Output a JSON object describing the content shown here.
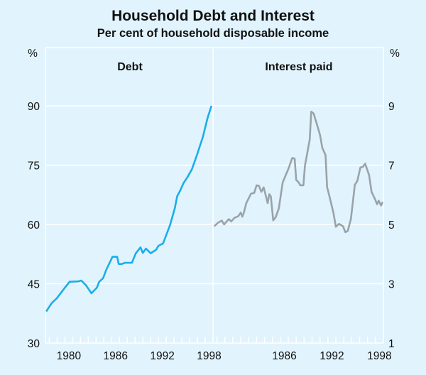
{
  "chart_data": [
    {
      "type": "line",
      "title": "Household Debt and Interest",
      "subtitle": "Per cent of household disposable income",
      "panel_title": "Debt",
      "ylabel": "%",
      "ylim": [
        30,
        105
      ],
      "yticks": [
        30,
        45,
        60,
        75,
        90
      ],
      "xlim": [
        1976.5,
        1998
      ],
      "xtick_labels": [
        "1980",
        "1986",
        "1992",
        "1998"
      ],
      "grid": true,
      "color": "#1aaeea",
      "x": [
        1976.6,
        1977.3,
        1977.95,
        1979.0,
        1979.6,
        1980.7,
        1981.1,
        1981.7,
        1982.4,
        1983.1,
        1983.4,
        1983.9,
        1984.3,
        1985.1,
        1985.7,
        1985.9,
        1986.3,
        1986.7,
        1987.2,
        1987.6,
        1988.1,
        1988.7,
        1989.0,
        1989.4,
        1990.0,
        1990.7,
        1991.0,
        1991.6,
        1992.5,
        1993.1,
        1993.4,
        1993.8,
        1994.2,
        1994.7,
        1995.3,
        1995.9,
        1996.7,
        1997.3,
        1997.8
      ],
      "y": [
        38.0,
        40.1,
        41.3,
        44.0,
        45.5,
        45.6,
        45.8,
        44.6,
        42.6,
        44.0,
        45.5,
        46.4,
        48.5,
        51.8,
        51.8,
        50.0,
        50.0,
        50.3,
        50.3,
        50.3,
        52.7,
        54.2,
        52.8,
        53.9,
        52.7,
        53.6,
        54.6,
        55.2,
        59.9,
        64.1,
        67.1,
        68.6,
        70.4,
        71.9,
        74.0,
        77.3,
        82.1,
        86.9,
        90.0
      ]
    },
    {
      "type": "line",
      "panel_title": "Interest paid",
      "ylabel": "%",
      "ylim": [
        1,
        10.5
      ],
      "yticks": [
        1,
        3,
        5,
        7,
        9
      ],
      "xlim": [
        1976.5,
        1998
      ],
      "xtick_labels": [
        "1986",
        "1992",
        "1998"
      ],
      "grid": true,
      "color": "#9aa3a8",
      "x": [
        1976.65,
        1977.1,
        1977.6,
        1977.9,
        1978.5,
        1978.8,
        1979.2,
        1979.7,
        1980.0,
        1980.2,
        1980.4,
        1980.7,
        1981.3,
        1981.7,
        1982.0,
        1982.3,
        1982.6,
        1982.9,
        1983.4,
        1983.6,
        1983.8,
        1984.1,
        1984.4,
        1984.8,
        1985.3,
        1986.0,
        1986.5,
        1986.8,
        1987.0,
        1987.3,
        1987.5,
        1987.9,
        1988.1,
        1988.7,
        1988.9,
        1989.2,
        1989.7,
        1990.0,
        1990.3,
        1990.7,
        1990.9,
        1991.2,
        1991.7,
        1992.0,
        1992.4,
        1992.9,
        1993.2,
        1993.5,
        1993.9,
        1994.4,
        1994.7,
        1995.1,
        1995.4,
        1995.7,
        1996.2,
        1996.5,
        1997.0,
        1997.2,
        1997.4,
        1997.7,
        1997.9
      ],
      "y": [
        4.94,
        5.05,
        5.13,
        5.0,
        5.18,
        5.1,
        5.22,
        5.28,
        5.4,
        5.26,
        5.4,
        5.72,
        6.04,
        6.06,
        6.32,
        6.3,
        6.1,
        6.25,
        5.72,
        6.02,
        5.94,
        5.14,
        5.24,
        5.54,
        6.42,
        6.86,
        7.24,
        7.22,
        6.5,
        6.42,
        6.32,
        6.32,
        6.98,
        7.86,
        8.8,
        8.74,
        8.3,
        8.02,
        7.58,
        7.34,
        6.26,
        5.94,
        5.38,
        4.92,
        5.02,
        4.94,
        4.74,
        4.78,
        5.18,
        6.34,
        6.46,
        6.92,
        6.94,
        7.05,
        6.66,
        6.1,
        5.82,
        5.68,
        5.8,
        5.64,
        5.76
      ]
    }
  ]
}
